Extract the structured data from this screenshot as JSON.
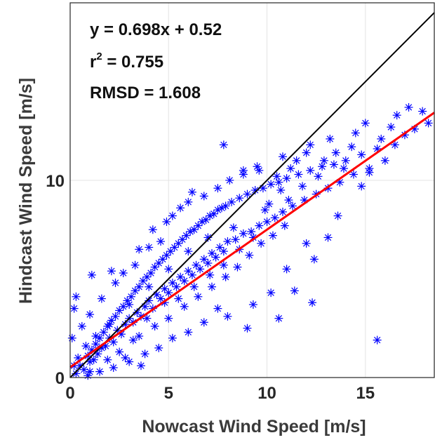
{
  "chart_data": {
    "type": "scatter",
    "xlabel": "Nowcast Wind Speed [m/s]",
    "ylabel": "Hindcast Wind Speed [m/s]",
    "xlim": [
      0,
      18.5
    ],
    "ylim": [
      0,
      19
    ],
    "xticks": [
      0,
      5,
      10,
      15
    ],
    "yticks": [
      0,
      10
    ],
    "grid": true,
    "marker": "asterisk",
    "marker_color": "#0000ff",
    "annotations": [
      "y = 0.698x + 0.52",
      "r",
      "2",
      " = 0.755",
      "RMSD = 1.608"
    ],
    "fit_line": {
      "slope": 0.698,
      "intercept": 0.52,
      "color": "#ff0000"
    },
    "identity_line": {
      "slope": 1,
      "intercept": 0,
      "color": "#000000"
    },
    "r2": 0.755,
    "rmsd": 1.608,
    "points": [
      [
        0.3,
        0.2
      ],
      [
        0.5,
        0.6
      ],
      [
        0.7,
        0.4
      ],
      [
        0.9,
        1.1
      ],
      [
        1.0,
        0.8
      ],
      [
        1.1,
        1.4
      ],
      [
        1.2,
        0.9
      ],
      [
        1.3,
        1.7
      ],
      [
        1.4,
        1.2
      ],
      [
        1.5,
        2.0
      ],
      [
        1.6,
        1.5
      ],
      [
        1.7,
        2.3
      ],
      [
        1.8,
        1.6
      ],
      [
        1.9,
        2.6
      ],
      [
        2.0,
        2.0
      ],
      [
        2.1,
        2.9
      ],
      [
        2.2,
        1.8
      ],
      [
        2.3,
        3.1
      ],
      [
        2.4,
        2.4
      ],
      [
        2.5,
        3.4
      ],
      [
        2.6,
        2.2
      ],
      [
        2.7,
        3.6
      ],
      [
        2.8,
        2.7
      ],
      [
        2.9,
        3.9
      ],
      [
        3.0,
        3.0
      ],
      [
        3.1,
        4.1
      ],
      [
        3.2,
        2.8
      ],
      [
        3.3,
        4.4
      ],
      [
        3.4,
        3.3
      ],
      [
        3.5,
        4.6
      ],
      [
        3.6,
        3.1
      ],
      [
        3.7,
        4.9
      ],
      [
        3.8,
        3.6
      ],
      [
        3.9,
        5.1
      ],
      [
        4.0,
        3.9
      ],
      [
        4.1,
        5.3
      ],
      [
        4.2,
        3.5
      ],
      [
        4.3,
        5.6
      ],
      [
        4.4,
        4.2
      ],
      [
        4.5,
        5.8
      ],
      [
        4.6,
        4.0
      ],
      [
        4.7,
        6.0
      ],
      [
        4.8,
        4.5
      ],
      [
        4.9,
        6.2
      ],
      [
        5.0,
        4.3
      ],
      [
        5.1,
        6.4
      ],
      [
        5.2,
        4.8
      ],
      [
        5.3,
        6.6
      ],
      [
        5.4,
        4.6
      ],
      [
        5.5,
        6.8
      ],
      [
        5.6,
        5.1
      ],
      [
        5.7,
        7.0
      ],
      [
        5.8,
        4.9
      ],
      [
        5.9,
        7.2
      ],
      [
        6.0,
        5.4
      ],
      [
        6.1,
        7.4
      ],
      [
        6.2,
        5.2
      ],
      [
        6.3,
        7.5
      ],
      [
        6.4,
        5.7
      ],
      [
        6.5,
        7.7
      ],
      [
        6.6,
        5.5
      ],
      [
        6.7,
        7.9
      ],
      [
        6.8,
        6.0
      ],
      [
        6.9,
        8.0
      ],
      [
        7.0,
        5.8
      ],
      [
        7.1,
        8.2
      ],
      [
        7.2,
        6.3
      ],
      [
        7.3,
        8.3
      ],
      [
        7.4,
        6.1
      ],
      [
        7.5,
        8.5
      ],
      [
        7.6,
        6.6
      ],
      [
        7.7,
        8.6
      ],
      [
        7.8,
        6.4
      ],
      [
        7.9,
        8.7
      ],
      [
        8.0,
        6.9
      ],
      [
        8.2,
        8.9
      ],
      [
        8.4,
        7.0
      ],
      [
        8.6,
        9.1
      ],
      [
        8.8,
        7.3
      ],
      [
        9.0,
        9.3
      ],
      [
        9.2,
        7.4
      ],
      [
        9.4,
        9.5
      ],
      [
        9.6,
        7.7
      ],
      [
        9.8,
        9.6
      ],
      [
        10.0,
        7.9
      ],
      [
        10.2,
        9.8
      ],
      [
        10.4,
        8.1
      ],
      [
        10.6,
        9.9
      ],
      [
        10.8,
        8.4
      ],
      [
        11.0,
        10.1
      ],
      [
        11.3,
        8.7
      ],
      [
        11.6,
        10.3
      ],
      [
        11.9,
        9.0
      ],
      [
        12.2,
        10.5
      ],
      [
        12.5,
        9.3
      ],
      [
        12.8,
        10.7
      ],
      [
        13.1,
        9.6
      ],
      [
        13.4,
        10.8
      ],
      [
        13.7,
        9.9
      ],
      [
        14.0,
        11.0
      ],
      [
        14.4,
        10.3
      ],
      [
        14.8,
        11.3
      ],
      [
        15.2,
        10.6
      ],
      [
        15.6,
        11.6
      ],
      [
        16.0,
        11.0
      ],
      [
        16.5,
        11.8
      ],
      [
        17.0,
        12.3
      ],
      [
        17.5,
        12.6
      ],
      [
        18.2,
        12.9
      ],
      [
        16.6,
        13.3
      ],
      [
        17.2,
        13.7
      ],
      [
        14.5,
        12.4
      ],
      [
        15.0,
        12.9
      ],
      [
        13.2,
        12.1
      ],
      [
        12.0,
        11.4
      ],
      [
        11.5,
        11.0
      ],
      [
        7.8,
        11.8
      ],
      [
        8.8,
        10.5
      ],
      [
        9.5,
        10.7
      ],
      [
        10.8,
        11.2
      ],
      [
        12.2,
        11.8
      ],
      [
        1.0,
        3.2
      ],
      [
        0.6,
        2.6
      ],
      [
        1.6,
        4.0
      ],
      [
        2.3,
        4.8
      ],
      [
        2.7,
        5.3
      ],
      [
        3.3,
        5.7
      ],
      [
        4.0,
        6.6
      ],
      [
        4.6,
        6.9
      ],
      [
        5.2,
        8.2
      ],
      [
        5.6,
        8.6
      ],
      [
        6.2,
        9.4
      ],
      [
        1.5,
        0.3
      ],
      [
        2.2,
        0.5
      ],
      [
        3.0,
        0.8
      ],
      [
        3.8,
        1.2
      ],
      [
        4.5,
        1.5
      ],
      [
        5.2,
        2.0
      ],
      [
        6.0,
        2.3
      ],
      [
        6.8,
        2.8
      ],
      [
        7.5,
        3.5
      ],
      [
        9.3,
        3.7
      ],
      [
        10.2,
        4.3
      ],
      [
        11.4,
        4.4
      ],
      [
        12.3,
        3.8
      ],
      [
        11.0,
        5.5
      ],
      [
        12.4,
        6.0
      ],
      [
        13.1,
        7.1
      ],
      [
        13.6,
        8.2
      ],
      [
        12.0,
        6.8
      ],
      [
        14.8,
        9.7
      ],
      [
        15.2,
        10.4
      ],
      [
        15.6,
        1.9
      ],
      [
        10.6,
        3.0
      ],
      [
        9.0,
        2.5
      ],
      [
        8.0,
        3.1
      ],
      [
        0.2,
        3.5
      ],
      [
        0.1,
        2.0
      ],
      [
        0.3,
        4.1
      ],
      [
        1.1,
        5.2
      ],
      [
        0.9,
        0.1
      ],
      [
        1.9,
        0.9
      ],
      [
        2.8,
        1.0
      ],
      [
        3.6,
        0.6
      ],
      [
        3.5,
        2.1
      ],
      [
        4.3,
        2.6
      ],
      [
        5.0,
        3.0
      ],
      [
        5.8,
        3.6
      ],
      [
        6.5,
        4.1
      ],
      [
        7.2,
        4.6
      ],
      [
        7.9,
        5.1
      ],
      [
        8.5,
        5.6
      ],
      [
        9.1,
        6.2
      ],
      [
        9.7,
        6.8
      ],
      [
        10.3,
        7.2
      ],
      [
        10.9,
        7.7
      ],
      [
        6.0,
        8.9
      ],
      [
        6.8,
        9.2
      ],
      [
        7.5,
        9.6
      ],
      [
        8.1,
        10.0
      ],
      [
        8.8,
        10.3
      ],
      [
        9.6,
        10.5
      ],
      [
        10.5,
        10.2
      ],
      [
        11.2,
        10.6
      ],
      [
        2.1,
        5.4
      ],
      [
        3.5,
        6.5
      ],
      [
        4.2,
        7.5
      ],
      [
        4.9,
        7.9
      ],
      [
        3.9,
        3.0
      ],
      [
        4.8,
        3.8
      ],
      [
        5.5,
        4.0
      ],
      [
        6.3,
        4.6
      ],
      [
        7.1,
        5.2
      ],
      [
        7.8,
        5.7
      ],
      [
        8.6,
        6.5
      ],
      [
        9.3,
        7.1
      ],
      [
        10.1,
        8.8
      ],
      [
        10.7,
        9.5
      ],
      [
        11.8,
        9.7
      ],
      [
        12.6,
        10.2
      ],
      [
        13.9,
        10.6
      ],
      [
        14.3,
        11.7
      ],
      [
        15.8,
        12.1
      ],
      [
        17.9,
        13.5
      ],
      [
        16.3,
        12.7
      ],
      [
        13.5,
        11.4
      ],
      [
        12.9,
        11.0
      ],
      [
        11.1,
        9.0
      ],
      [
        9.9,
        8.5
      ],
      [
        8.3,
        7.6
      ],
      [
        7.0,
        7.1
      ],
      [
        6.0,
        6.4
      ],
      [
        5.0,
        5.5
      ],
      [
        4.0,
        4.6
      ],
      [
        3.0,
        3.7
      ],
      [
        2.0,
        2.7
      ],
      [
        1.3,
        2.1
      ],
      [
        0.8,
        1.6
      ],
      [
        0.4,
        1.0
      ],
      [
        0.2,
        0.6
      ],
      [
        1.0,
        0.3
      ],
      [
        2.5,
        1.3
      ],
      [
        3.2,
        1.9
      ]
    ]
  }
}
